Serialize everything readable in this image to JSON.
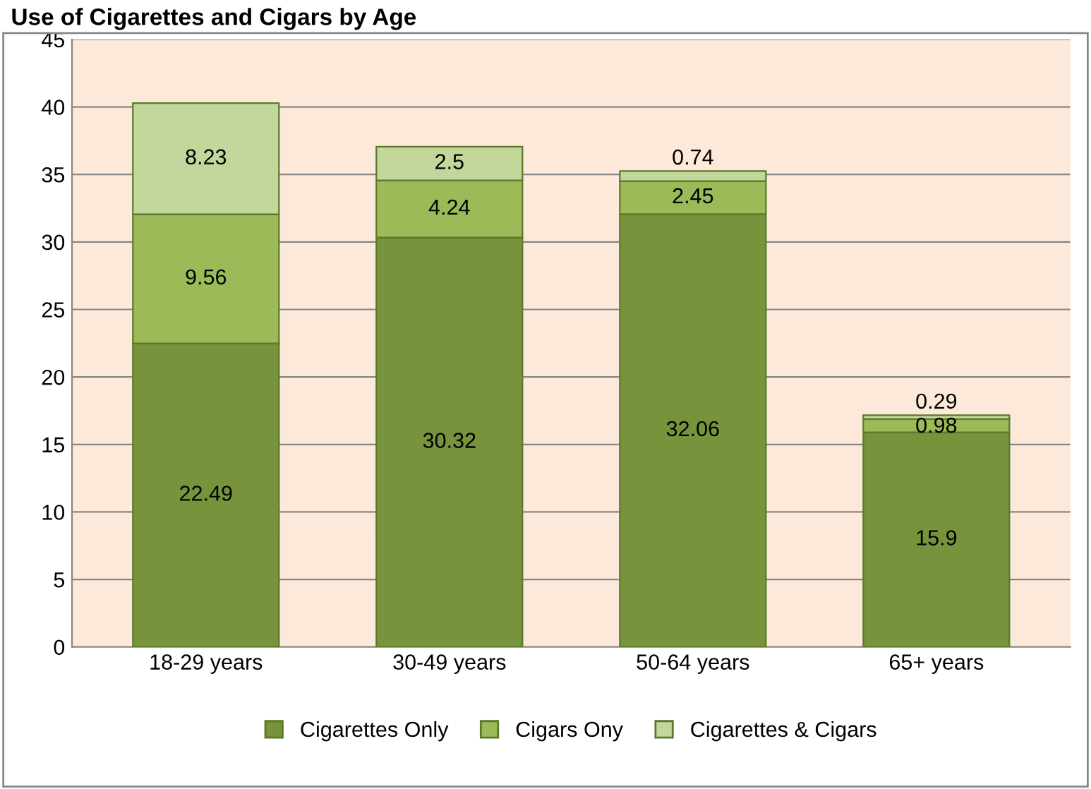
{
  "chart_data": {
    "type": "bar",
    "title": "Use of Cigarettes and Cigars by Age",
    "stacked": true,
    "categories": [
      "18-29 years",
      "30-49 years",
      "50-64 years",
      "65+ years"
    ],
    "series": [
      {
        "name": "Cigarettes Only",
        "color": "#77933c",
        "values": [
          22.49,
          30.32,
          32.06,
          15.9
        ]
      },
      {
        "name": "Cigars Ony",
        "color": "#9bbb59",
        "values": [
          9.56,
          4.24,
          2.45,
          0.98
        ]
      },
      {
        "name": "Cigarettes & Cigars",
        "color": "#c3d69b",
        "values": [
          8.23,
          2.5,
          0.74,
          0.29
        ]
      }
    ],
    "ylim": [
      0,
      45
    ],
    "yticks": [
      0,
      5,
      10,
      15,
      20,
      25,
      30,
      35,
      40,
      45
    ],
    "grid": "y",
    "legend": "bottom",
    "data_labels": true
  }
}
